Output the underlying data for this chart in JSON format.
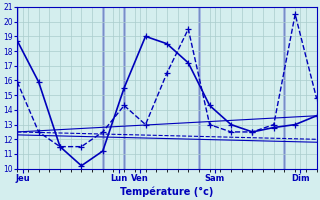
{
  "title": "Température (°c)",
  "bg_color": "#d4eeee",
  "grid_color": "#aacccc",
  "line_color": "#0000bb",
  "ylim": [
    10,
    21
  ],
  "yticks": [
    10,
    11,
    12,
    13,
    14,
    15,
    16,
    17,
    18,
    19,
    20,
    21
  ],
  "xlim": [
    0,
    28
  ],
  "xgrid_step": 1,
  "day_labels": [
    "Jeu",
    "Lun",
    "Ven",
    "Sam",
    "Dim"
  ],
  "day_positions": [
    0.5,
    9.5,
    11.5,
    18.5,
    26.5
  ],
  "day_vlines": [
    0,
    8,
    10,
    17,
    25
  ],
  "lines": [
    {
      "x": [
        0,
        2,
        4,
        6,
        8,
        10,
        12,
        14,
        16,
        18,
        20,
        22,
        24,
        26,
        28
      ],
      "y": [
        18.7,
        15.9,
        11.5,
        10.2,
        11.2,
        15.5,
        19.0,
        18.5,
        17.2,
        14.3,
        13.0,
        12.5,
        12.8,
        13.0,
        13.6
      ],
      "style": "-",
      "marker": "+",
      "lw": 1.2
    },
    {
      "x": [
        0,
        2,
        4,
        6,
        8,
        10,
        12,
        14,
        16,
        18,
        20,
        22,
        24,
        26,
        28
      ],
      "y": [
        15.9,
        12.5,
        11.5,
        11.5,
        12.5,
        14.3,
        13.0,
        16.5,
        19.5,
        13.0,
        12.5,
        12.5,
        13.0,
        20.5,
        14.8
      ],
      "style": "--",
      "marker": "+",
      "lw": 1.0
    },
    {
      "x": [
        0,
        28
      ],
      "y": [
        12.5,
        13.6
      ],
      "style": "-",
      "marker": null,
      "lw": 0.8
    },
    {
      "x": [
        0,
        28
      ],
      "y": [
        12.3,
        11.8
      ],
      "style": "-",
      "marker": null,
      "lw": 0.8
    },
    {
      "x": [
        0,
        28
      ],
      "y": [
        12.5,
        12.0
      ],
      "style": "--",
      "marker": null,
      "lw": 0.8
    }
  ]
}
